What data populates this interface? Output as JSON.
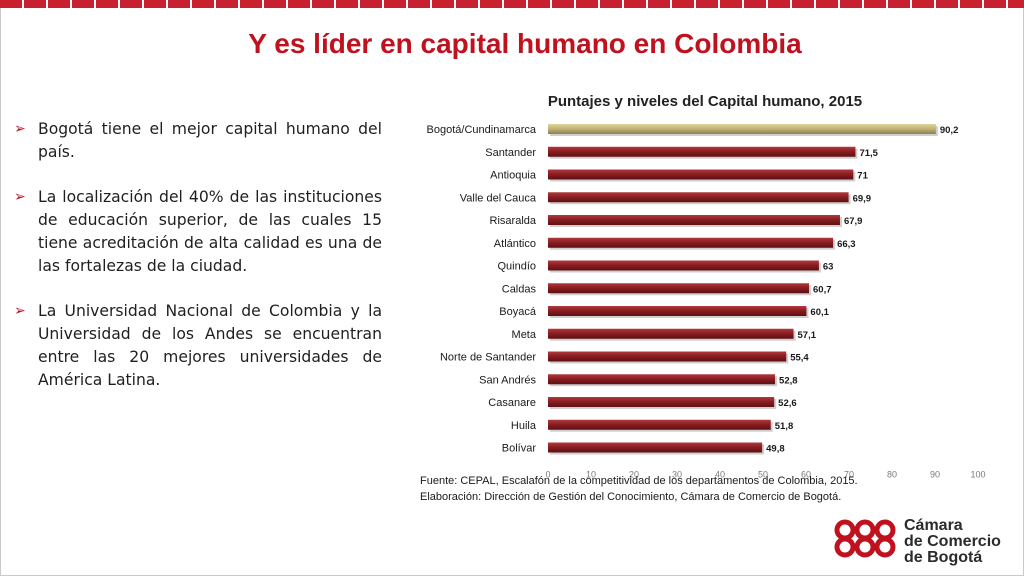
{
  "slide": {
    "title": "Y es líder en capital humano en Colombia",
    "bullets": [
      "Bogotá tiene el mejor capital humano del país.",
      "La localización del 40% de las instituciones de educación superior, de las cuales 15 tiene acreditación de alta calidad es una de las fortalezas de la ciudad.",
      "La Universidad Nacional de Colombia y la Universidad de los Andes se encuentran entre las 20 mejores universidades de América Latina."
    ],
    "source_line1": "Fuente: CEPAL, Escalafón de la competitividad de los departamentos de Colombia, 2015.",
    "source_line2": "Elaboración: Dirección de Gestión del Conocimiento, Cámara de Comercio de Bogotá.",
    "logo_lines": [
      "Cámara",
      "de Comercio",
      "de Bogotá"
    ],
    "colors": {
      "accent": "#c0111f",
      "bar": "#8b1e22",
      "highlight_bar": "#c4b57a"
    }
  },
  "chart_data": {
    "type": "bar",
    "orientation": "horizontal",
    "title": "Puntajes y niveles del Capital humano, 2015",
    "categories": [
      "Bogotá/Cundinamarca",
      "Santander",
      "Antioquia",
      "Valle del Cauca",
      "Risaralda",
      "Atlántico",
      "Quindío",
      "Caldas",
      "Boyacá",
      "Meta",
      "Norte de Santander",
      "San Andrés",
      "Casanare",
      "Huila",
      "Bolívar"
    ],
    "value_labels": [
      "90,2",
      "71,5",
      "71",
      "69,9",
      "67,9",
      "66,3",
      "63",
      "60,7",
      "60,1",
      "57,1",
      "55,4",
      "52,8",
      "52,6",
      "51,8",
      "49,8"
    ],
    "values": [
      90.2,
      71.5,
      71,
      69.9,
      67.9,
      66.3,
      63,
      60.7,
      60.1,
      57.1,
      55.4,
      52.8,
      52.6,
      51.8,
      49.8
    ],
    "xlim": [
      0,
      100
    ],
    "xticks": [
      0,
      10,
      20,
      30,
      40,
      50,
      60,
      70,
      80,
      90,
      100
    ],
    "highlight_index": 0,
    "grid": false,
    "legend": "none"
  }
}
